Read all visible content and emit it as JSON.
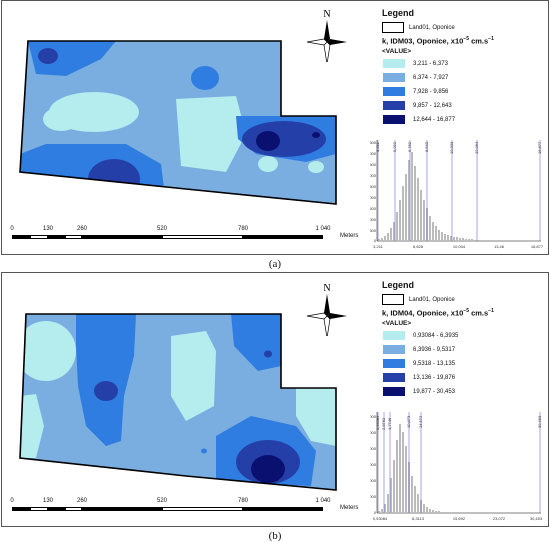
{
  "panel_a": {
    "caption": "(a)",
    "legend": {
      "title": "Legend",
      "boundary_label": "Land01, Oponice",
      "layer_title_prefix": "k, IDM03, Oponice, x10",
      "layer_title_exp": "−5",
      "layer_title_unit": " cm.s",
      "layer_title_exp2": "−1",
      "value_header": "<VALUE>",
      "classes": [
        {
          "range": "3,211 - 6,373",
          "color": "#b5ecee"
        },
        {
          "range": "6,374 - 7,927",
          "color": "#7aaee0"
        },
        {
          "range": "7,928 - 9,856",
          "color": "#2f7de0"
        },
        {
          "range": "9,857 - 12,643",
          "color": "#2440a8"
        },
        {
          "range": "12,644 - 16,877",
          "color": "#0a1070"
        }
      ]
    },
    "scale": {
      "ticks": [
        "0",
        "130",
        "260",
        "520",
        "780",
        "1 040"
      ],
      "unit": "Meters"
    },
    "north": "N",
    "histogram": {
      "top_ticks": [
        "3,211",
        "5,022",
        "6,782",
        "8,543",
        "10,303",
        "12,064",
        "16,877"
      ],
      "y_ticks": [
        "4500",
        "4000",
        "3500",
        "3000",
        "2500",
        "2000",
        "1500",
        "1000",
        "500",
        "0"
      ],
      "x_ticks": [
        "3,211",
        "6,628",
        "10,044",
        "13,46",
        "16,877"
      ]
    }
  },
  "panel_b": {
    "caption": "(b)",
    "legend": {
      "title": "Legend",
      "boundary_label": "Land01, Oponice",
      "layer_title_prefix": "k, IDM04, Oponice, x10",
      "layer_title_exp": "−5",
      "layer_title_unit": " cm.s",
      "layer_title_exp2": "−1",
      "value_header": "<VALUE>",
      "classes": [
        {
          "range": "0,93084 - 6,3935",
          "color": "#b5ecee"
        },
        {
          "range": "6,3936 - 9,5317",
          "color": "#7aaee0"
        },
        {
          "range": "9,5318 - 13,135",
          "color": "#2f7de0"
        },
        {
          "range": "13,136 - 19,876",
          "color": "#2440a8"
        },
        {
          "range": "19,877 - 30,453",
          "color": "#0a1070"
        }
      ]
    },
    "scale": {
      "ticks": [
        "0",
        "130",
        "260",
        "520",
        "780",
        "1 040"
      ],
      "unit": "Meters"
    },
    "north": "N",
    "histogram": {
      "top_ticks": [
        "0,93084",
        "2,8762",
        "4,7746",
        "10,873",
        "14,572",
        "30,453"
      ],
      "y_ticks": [
        "6000",
        "5000",
        "4000",
        "3000",
        "2000",
        "1000",
        "0"
      ],
      "x_ticks": [
        "0,93084",
        "8,3113",
        "15,692",
        "23,072",
        "30,453"
      ]
    }
  }
}
